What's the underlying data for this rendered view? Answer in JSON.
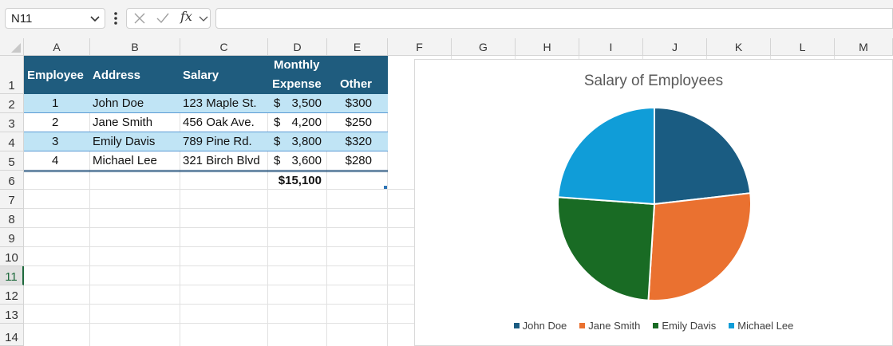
{
  "formula_bar": {
    "name_box": "N11",
    "fx_label": "fx",
    "formula": ""
  },
  "columns": [
    "A",
    "B",
    "C",
    "D",
    "E",
    "F",
    "G",
    "H",
    "I",
    "J",
    "K",
    "L",
    "M"
  ],
  "rows": [
    "1",
    "2",
    "3",
    "4",
    "5",
    "6",
    "7",
    "8",
    "9",
    "10",
    "11",
    "12",
    "13",
    "14"
  ],
  "active_row": "11",
  "table": {
    "headers": {
      "employee": "Employee",
      "address": "Address",
      "salary": "Salary",
      "monthly": "Monthly",
      "expense": "Expense",
      "other": "Other"
    },
    "rows": [
      {
        "id": "1",
        "name": "John Doe",
        "address": "123 Maple St.",
        "dollar": "$",
        "expense": "3,500",
        "other": "$300"
      },
      {
        "id": "2",
        "name": "Jane Smith",
        "address": "456 Oak Ave.",
        "dollar": "$",
        "expense": "4,200",
        "other": "$250"
      },
      {
        "id": "3",
        "name": "Emily Davis",
        "address": "789 Pine Rd.",
        "dollar": "$",
        "expense": "3,800",
        "other": "$320"
      },
      {
        "id": "4",
        "name": "Michael Lee",
        "address": "321 Birch Blvd",
        "dollar": "$",
        "expense": "3,600",
        "other": "$280"
      }
    ],
    "total": "$15,100"
  },
  "chart_data": {
    "type": "pie",
    "title": "Salary of Employees",
    "categories": [
      "John Doe",
      "Jane Smith",
      "Emily Davis",
      "Michael Lee"
    ],
    "values": [
      3500,
      4200,
      3800,
      3600
    ],
    "colors": [
      "#1a5c82",
      "#ea7130",
      "#196b24",
      "#109dd8"
    ],
    "legend_position": "bottom"
  }
}
